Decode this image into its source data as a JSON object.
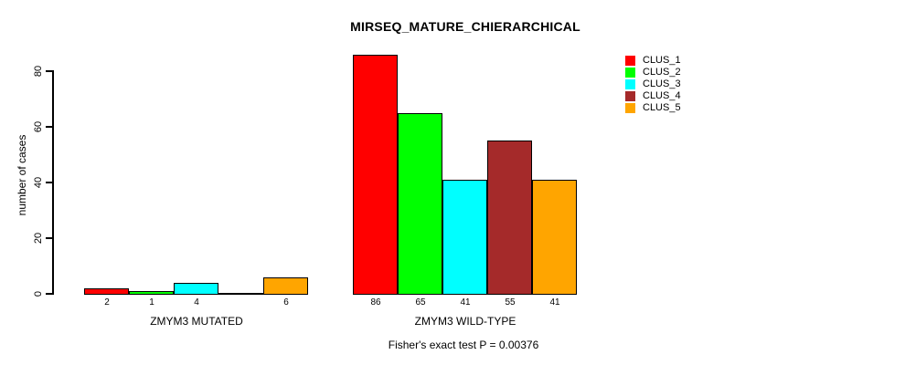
{
  "chart_data": {
    "type": "bar",
    "title": "MIRSEQ_MATURE_CHIERARCHICAL",
    "ylabel": "number of cases",
    "xlabel": "",
    "ylim": [
      0,
      80
    ],
    "yticks": [
      0,
      20,
      40,
      60,
      80
    ],
    "grid": false,
    "legend_position": "top-right",
    "categories": [
      "ZMYM3 MUTATED",
      "ZMYM3 WILD-TYPE"
    ],
    "series": [
      {
        "name": "CLUS_1",
        "color": "#FF0000",
        "values": [
          2,
          86
        ]
      },
      {
        "name": "CLUS_2",
        "color": "#00FF00",
        "values": [
          1,
          65
        ]
      },
      {
        "name": "CLUS_3",
        "color": "#00FFFF",
        "values": [
          4,
          41
        ]
      },
      {
        "name": "CLUS_4",
        "color": "#A52A2A",
        "values": [
          0,
          55
        ]
      },
      {
        "name": "CLUS_5",
        "color": "#FFA500",
        "values": [
          6,
          41
        ]
      }
    ],
    "bar_value_labels": [
      [
        "2",
        "1",
        "4",
        "",
        "6"
      ],
      [
        "86",
        "65",
        "41",
        "55",
        "41"
      ]
    ],
    "annotation": "Fisher's exact test P = 0.00376",
    "colors": {
      "background": "#FFFFFF",
      "axis": "#000000",
      "text": "#000000"
    }
  }
}
